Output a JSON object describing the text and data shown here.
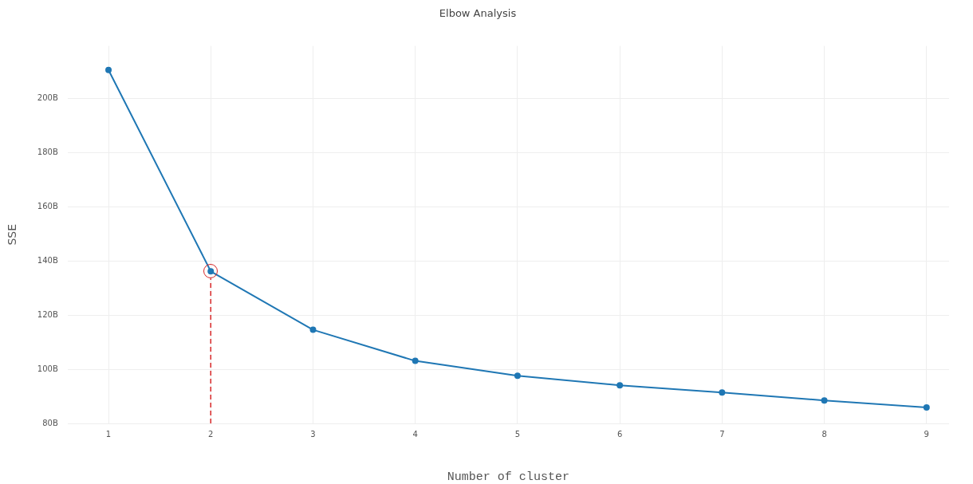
{
  "chart_data": {
    "type": "line",
    "title": "Elbow Analysis",
    "xlabel": "Number of cluster",
    "ylabel": "SSE",
    "x": [
      1,
      2,
      3,
      4,
      5,
      6,
      7,
      8,
      9
    ],
    "series": [
      {
        "color": "#1f77b4",
        "values": [
          210.6,
          136.2,
          114.6,
          103.1,
          97.6,
          94.1,
          91.4,
          88.5,
          85.9
        ]
      }
    ],
    "xlim": [
      0.6,
      9.22
    ],
    "xticks": [
      1,
      2,
      3,
      4,
      5,
      6,
      7,
      8,
      9
    ],
    "ylim": [
      80,
      219.5
    ],
    "yticks": [
      {
        "value": 80,
        "label": "80B"
      },
      {
        "value": 100,
        "label": "100B"
      },
      {
        "value": 120,
        "label": "120B"
      },
      {
        "value": 140,
        "label": "140B"
      },
      {
        "value": 160,
        "label": "160B"
      },
      {
        "value": 180,
        "label": "180B"
      },
      {
        "value": 200,
        "label": "200B"
      }
    ],
    "ref_lines": [
      {
        "axis": "x",
        "value": 2,
        "color": "#d62728",
        "line_style": "dashed"
      }
    ],
    "grid": true,
    "legend": false,
    "marker": "circle",
    "line_style": "solid"
  }
}
